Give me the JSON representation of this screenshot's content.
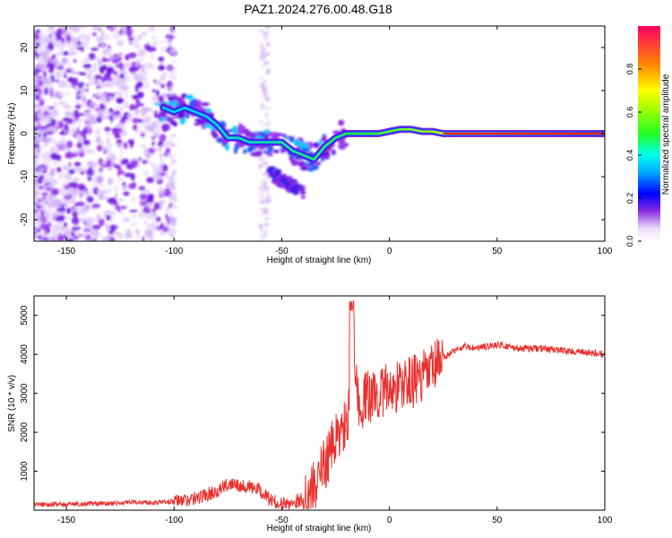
{
  "title": "PAZ1.2024.276.00.48.G18",
  "chart_data": [
    {
      "type": "heatmap",
      "xlabel": "Height of straight line (km)",
      "ylabel": "Frequency (Hz)",
      "xlim": [
        -165,
        100
      ],
      "ylim": [
        -25,
        25
      ],
      "xticks": [
        -150,
        -100,
        -50,
        0,
        50,
        100
      ],
      "yticks": [
        -20,
        -10,
        0,
        10,
        20
      ],
      "ridge": {
        "x": [
          -105,
          -100,
          -95,
          -90,
          -85,
          -80,
          -75,
          -70,
          -65,
          -60,
          -55,
          -50,
          -45,
          -40,
          -35,
          -30,
          -25,
          -20,
          -15,
          -10,
          -5,
          0,
          5,
          10,
          15,
          20,
          25,
          30,
          40,
          50,
          60,
          70,
          80,
          90,
          100
        ],
        "y": [
          6,
          5,
          6,
          5,
          4,
          2,
          -1,
          -1,
          -2,
          -2,
          -2,
          -2,
          -4,
          -5,
          -6,
          -3,
          -1,
          0,
          0,
          0,
          0,
          0.5,
          1,
          1,
          0.5,
          0.5,
          0,
          0,
          0,
          0,
          0,
          0,
          0,
          0,
          0
        ]
      },
      "colorbar": {
        "label": "Normalized spectral amplitude",
        "range": [
          0,
          1
        ],
        "ticks": [
          "0.0",
          "0.2",
          "0.4",
          "0.6",
          "0.8"
        ]
      },
      "grid": false
    },
    {
      "type": "line",
      "xlabel": "Height of straight line (km)",
      "ylabel": "SNR (10 * v/v)",
      "xlim": [
        -165,
        100
      ],
      "ylim": [
        0,
        5500
      ],
      "xticks": [
        -150,
        -100,
        -50,
        0,
        50,
        100
      ],
      "yticks": [
        1000,
        2000,
        3000,
        4000,
        5000
      ],
      "color": "#e8312f",
      "series": [
        {
          "x": [
            -165,
            -150,
            -140,
            -130,
            -120,
            -110,
            -100,
            -90,
            -85,
            -80,
            -75,
            -72,
            -70,
            -65,
            -60,
            -55,
            -50,
            -45,
            -40,
            -35,
            -30,
            -25,
            -20,
            -18,
            -17,
            -15,
            -10,
            -5,
            0,
            5,
            10,
            15,
            20,
            25,
            30,
            35,
            40,
            45,
            50,
            55,
            60,
            70,
            80,
            90,
            100
          ],
          "y": [
            150,
            150,
            170,
            170,
            200,
            200,
            220,
            300,
            400,
            500,
            650,
            750,
            650,
            600,
            500,
            250,
            150,
            200,
            300,
            600,
            1200,
            1800,
            2200,
            2600,
            5400,
            2700,
            2900,
            3000,
            3100,
            3200,
            3300,
            3400,
            3600,
            3900,
            4100,
            4200,
            4150,
            4200,
            4250,
            4200,
            4150,
            4150,
            4100,
            4050,
            4000
          ]
        }
      ],
      "grid": false
    }
  ]
}
